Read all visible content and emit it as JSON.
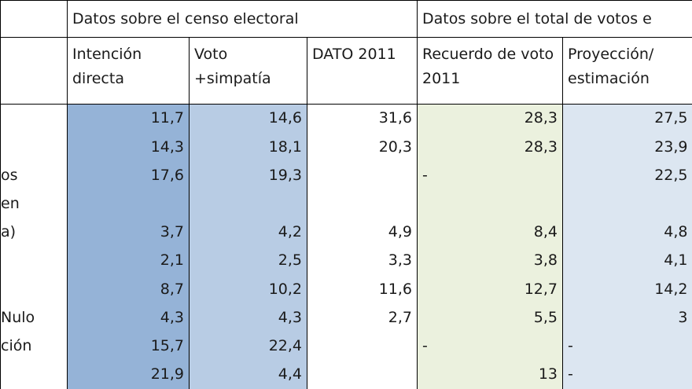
{
  "colors": {
    "intencion": "#95b3d7",
    "voto_simpatia": "#b8cce4",
    "recuerdo": "#ebf1de",
    "proyeccion": "#dce6f1"
  },
  "header": {
    "group1": "Datos sobre el censo electoral",
    "group2": "Datos sobre el total de votos e",
    "cols": [
      "Intención directa",
      "Voto +simpatía",
      "DATO 2011",
      "Recuerdo de voto 2011",
      "Proyección/ estimación"
    ]
  },
  "rows": [
    {
      "label": "",
      "v": [
        "11,7",
        "14,6",
        "31,6",
        "28,3",
        "27,5"
      ]
    },
    {
      "label": "",
      "v": [
        "14,3",
        "18,1",
        "20,3",
        "28,3",
        "23,9"
      ]
    },
    {
      "label": "os",
      "v": [
        "17,6",
        "19,3",
        "",
        "-",
        "22,5"
      ]
    },
    {
      "label": "en",
      "v": [
        "",
        "",
        "",
        "",
        ""
      ]
    },
    {
      "label": "a)",
      "v": [
        "3,7",
        "4,2",
        "4,9",
        "8,4",
        "4,8"
      ]
    },
    {
      "label": "",
      "v": [
        "2,1",
        "2,5",
        "3,3",
        "3,8",
        "4,1"
      ]
    },
    {
      "label": "",
      "v": [
        "8,7",
        "10,2",
        "11,6",
        "12,7",
        "14,2"
      ]
    },
    {
      "label": "Nulo",
      "v": [
        "4,3",
        "4,3",
        "2,7",
        "5,5",
        "3"
      ]
    },
    {
      "label": "ción",
      "v": [
        "15,7",
        "22,4",
        "",
        "-",
        "-"
      ]
    },
    {
      "label": "",
      "v": [
        "21,9",
        "4,4",
        "",
        "13",
        "-"
      ]
    }
  ]
}
